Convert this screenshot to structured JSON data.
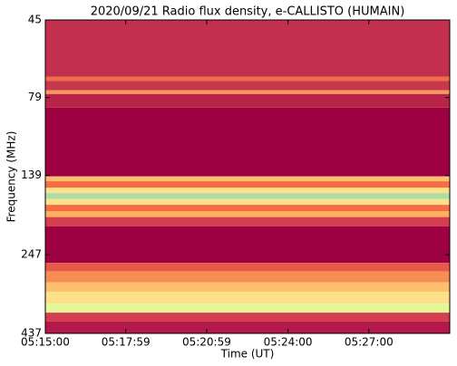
{
  "chart_data": {
    "type": "spectrogram",
    "title": "2020/09/21  Radio flux density, e-CALLISTO (HUMAIN)",
    "xlabel": "Time (UT)",
    "ylabel": "Frequency (MHz)",
    "xlim": [
      "05:15:00",
      "05:30:00"
    ],
    "xticks": [
      "05:15:00",
      "05:17:59",
      "05:20:59",
      "05:24:00",
      "05:27:00"
    ],
    "ylim": [
      45,
      437
    ],
    "yticks": [
      45,
      79,
      139,
      247,
      437
    ],
    "ylog": true,
    "yinvert": true,
    "bands": [
      {
        "from": 45,
        "to": 68,
        "color": "#c2304e"
      },
      {
        "from": 68,
        "to": 70,
        "color": "#f26c44"
      },
      {
        "from": 70,
        "to": 75,
        "color": "#c8374c"
      },
      {
        "from": 75,
        "to": 77,
        "color": "#f79a5a"
      },
      {
        "from": 77,
        "to": 85,
        "color": "#b82548"
      },
      {
        "from": 85,
        "to": 140,
        "color": "#9e0142"
      },
      {
        "from": 140,
        "to": 145,
        "color": "#fdbe6e"
      },
      {
        "from": 145,
        "to": 152,
        "color": "#f46d43"
      },
      {
        "from": 152,
        "to": 158,
        "color": "#fee08b"
      },
      {
        "from": 158,
        "to": 165,
        "color": "#abdda4"
      },
      {
        "from": 165,
        "to": 172,
        "color": "#fee08b"
      },
      {
        "from": 172,
        "to": 180,
        "color": "#f46d43"
      },
      {
        "from": 180,
        "to": 188,
        "color": "#fdae61"
      },
      {
        "from": 188,
        "to": 201,
        "color": "#d53e4f"
      },
      {
        "from": 201,
        "to": 262,
        "color": "#9e0142"
      },
      {
        "from": 262,
        "to": 279,
        "color": "#e75a47"
      },
      {
        "from": 279,
        "to": 302,
        "color": "#f88d52"
      },
      {
        "from": 302,
        "to": 323,
        "color": "#fdbe6e"
      },
      {
        "from": 323,
        "to": 352,
        "color": "#fee08b"
      },
      {
        "from": 352,
        "to": 376,
        "color": "#e6f598"
      },
      {
        "from": 376,
        "to": 401,
        "color": "#d53e4f"
      },
      {
        "from": 401,
        "to": 437,
        "color": "#b3194a"
      }
    ]
  }
}
